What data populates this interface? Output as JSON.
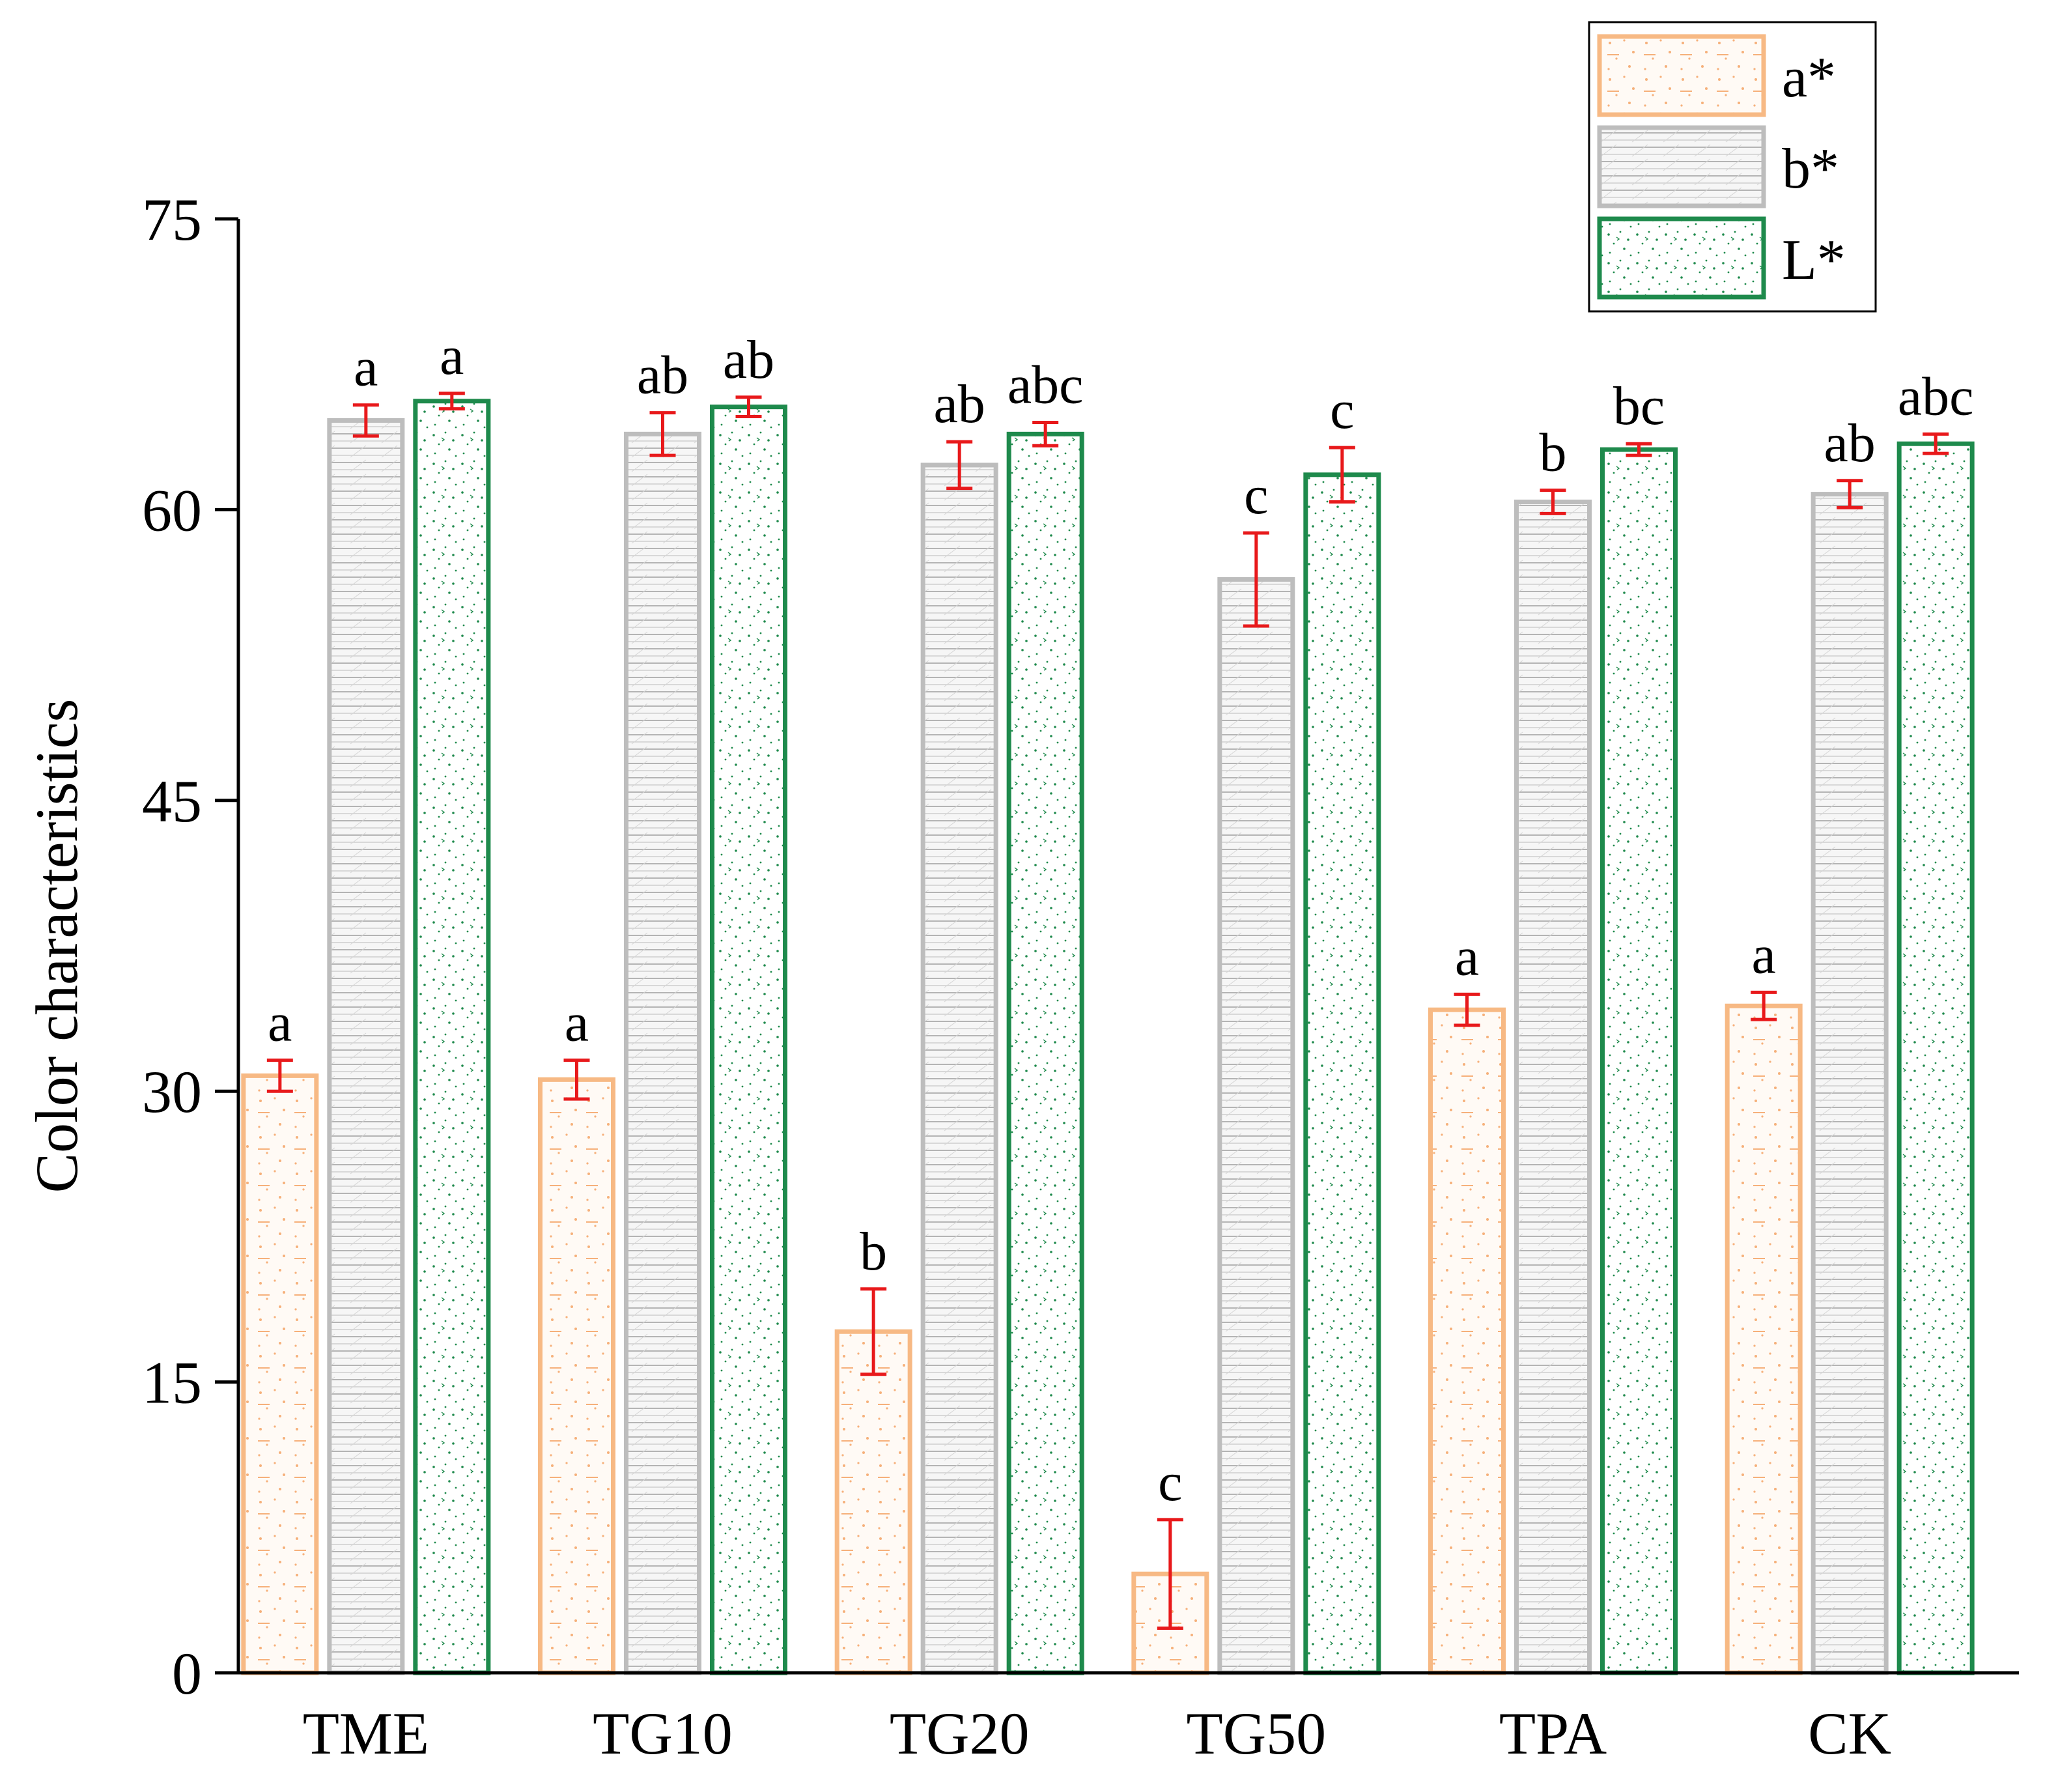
{
  "chart_data": {
    "type": "bar",
    "title": "",
    "xlabel": "",
    "ylabel": "Color characteristics",
    "ylim": [
      0,
      75
    ],
    "yticks": [
      "0",
      "15",
      "30",
      "45",
      "60",
      "75"
    ],
    "categories": [
      "TME",
      "TG10",
      "TG20",
      "TG50",
      "TPA",
      "CK"
    ],
    "legend_position": "top-right",
    "series": [
      {
        "name": "a*",
        "color": "#f7b984",
        "pattern": "orange-dots",
        "values": [
          30.8,
          30.6,
          17.6,
          5.1,
          34.2,
          34.4
        ],
        "errors": [
          0.8,
          1.0,
          2.2,
          2.8,
          0.8,
          0.7
        ],
        "labels": [
          "a",
          "a",
          "b",
          "c",
          "a",
          "a"
        ]
      },
      {
        "name": "b*",
        "color": "#bdbdbd",
        "pattern": "gray-lines",
        "values": [
          64.6,
          63.9,
          62.3,
          56.4,
          60.4,
          60.8
        ],
        "errors": [
          0.8,
          1.1,
          1.2,
          2.4,
          0.6,
          0.7
        ],
        "labels": [
          "a",
          "ab",
          "ab",
          "c",
          "b",
          "ab"
        ]
      },
      {
        "name": "L*",
        "color": "#1e8a4c",
        "pattern": "green-speckle",
        "values": [
          65.6,
          65.3,
          63.9,
          61.8,
          63.1,
          63.4
        ],
        "errors": [
          0.4,
          0.5,
          0.6,
          1.4,
          0.3,
          0.5
        ],
        "labels": [
          "a",
          "ab",
          "abc",
          "c",
          "bc",
          "abc"
        ]
      }
    ],
    "error_bar_color": "#e8191b"
  }
}
